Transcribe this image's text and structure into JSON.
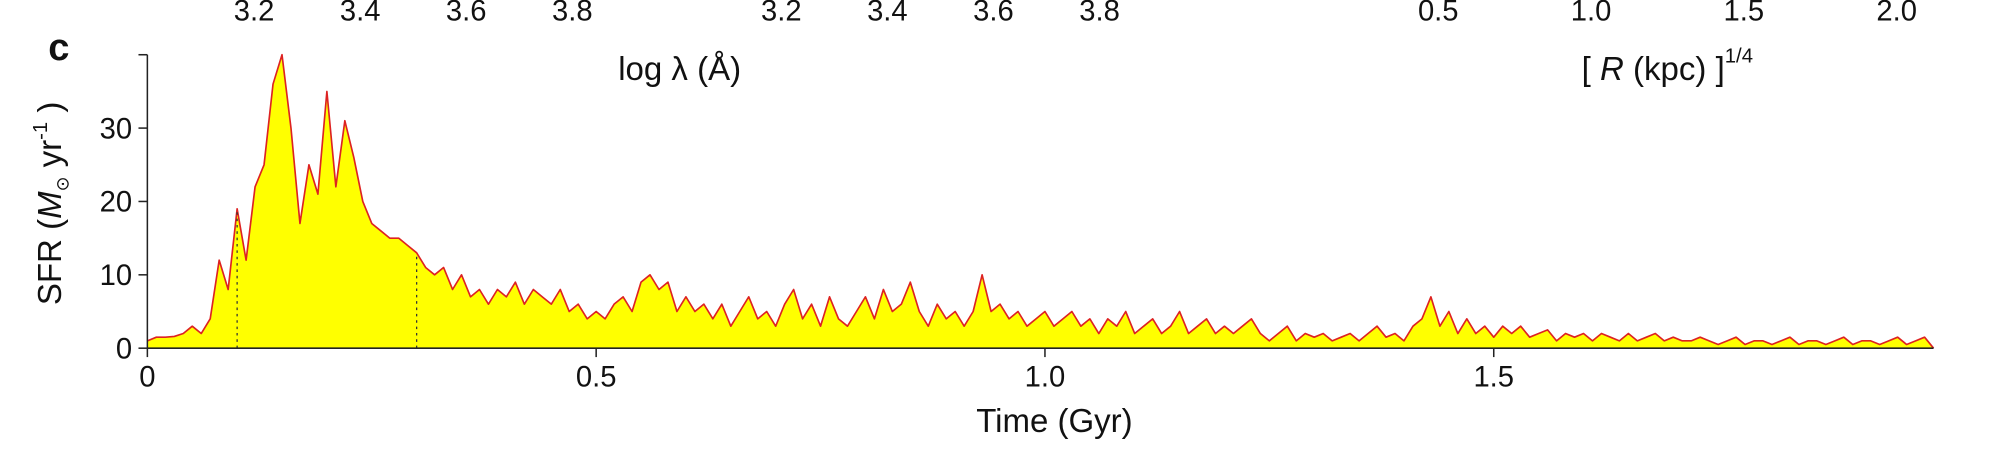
{
  "chart_data": [
    {
      "type": "axis",
      "xlim": [
        3.0,
        4.0
      ],
      "xticks": [
        3.2,
        3.4,
        3.6,
        3.8
      ]
    },
    {
      "type": "axis",
      "xlim": [
        3.0,
        4.0
      ],
      "xticks": [
        3.2,
        3.4,
        3.6,
        3.8
      ],
      "xlabel": "log λ (Å)"
    },
    {
      "type": "axis",
      "xlim": [
        0.3,
        2.1
      ],
      "xticks": [
        0.5,
        {
          "value": 1,
          "label": "1.0"
        },
        1.5,
        {
          "value": 2,
          "label": "2.0"
        }
      ],
      "xlabel": [
        "[ ",
        "R",
        " (kpc) ]",
        "1/4"
      ]
    },
    {
      "type": "area",
      "panel_label": "c",
      "xlabel": "Time (Gyr)",
      "ylabel": [
        "SFR (",
        "M",
        "⊙",
        " yr",
        "-1",
        " )"
      ],
      "xlim": [
        0,
        1.99
      ],
      "ylim": [
        0,
        40
      ],
      "xticks": [
        0,
        0.5,
        {
          "value": 1,
          "label": "1.0"
        },
        1.5
      ],
      "yticks": [
        0,
        10,
        20,
        30
      ],
      "vlines": [
        0.1,
        0.3
      ],
      "x": [
        0,
        0.01,
        0.02,
        0.03,
        0.04,
        0.05,
        0.06,
        0.07,
        0.08,
        0.09,
        0.1,
        0.11,
        0.12,
        0.13,
        0.14,
        0.15,
        0.16,
        0.17,
        0.18,
        0.19,
        0.2,
        0.21,
        0.22,
        0.23,
        0.24,
        0.25,
        0.26,
        0.27,
        0.28,
        0.29,
        0.3,
        0.31,
        0.32,
        0.33,
        0.34,
        0.35,
        0.36,
        0.37,
        0.38,
        0.39,
        0.4,
        0.41,
        0.42,
        0.43,
        0.44,
        0.45,
        0.46,
        0.47,
        0.48,
        0.49,
        0.5,
        0.51,
        0.52,
        0.53,
        0.54,
        0.55,
        0.56,
        0.57,
        0.58,
        0.59,
        0.6,
        0.61,
        0.62,
        0.63,
        0.64,
        0.65,
        0.66,
        0.67,
        0.68,
        0.69,
        0.7,
        0.71,
        0.72,
        0.73,
        0.74,
        0.75,
        0.76,
        0.77,
        0.78,
        0.79,
        0.8,
        0.81,
        0.82,
        0.83,
        0.84,
        0.85,
        0.86,
        0.87,
        0.88,
        0.89,
        0.9,
        0.91,
        0.92,
        0.93,
        0.94,
        0.95,
        0.96,
        0.97,
        0.98,
        0.99,
        1,
        1.01,
        1.02,
        1.03,
        1.04,
        1.05,
        1.06,
        1.07,
        1.08,
        1.09,
        1.1,
        1.11,
        1.12,
        1.13,
        1.14,
        1.15,
        1.16,
        1.17,
        1.18,
        1.19,
        1.2,
        1.21,
        1.22,
        1.23,
        1.24,
        1.25,
        1.26,
        1.27,
        1.28,
        1.29,
        1.3,
        1.31,
        1.32,
        1.33,
        1.34,
        1.35,
        1.36,
        1.37,
        1.38,
        1.39,
        1.4,
        1.41,
        1.42,
        1.43,
        1.44,
        1.45,
        1.46,
        1.47,
        1.48,
        1.49,
        1.5,
        1.51,
        1.52,
        1.53,
        1.54,
        1.55,
        1.56,
        1.57,
        1.58,
        1.59,
        1.6,
        1.61,
        1.62,
        1.63,
        1.64,
        1.65,
        1.66,
        1.67,
        1.68,
        1.69,
        1.7,
        1.71,
        1.72,
        1.73,
        1.74,
        1.75,
        1.76,
        1.77,
        1.78,
        1.79,
        1.8,
        1.81,
        1.82,
        1.83,
        1.84,
        1.85,
        1.86,
        1.87,
        1.88,
        1.89,
        1.9,
        1.91,
        1.92,
        1.93,
        1.94,
        1.95,
        1.96,
        1.97,
        1.98,
        1.99
      ],
      "series": [
        {
          "color": "#ffff00",
          "edge_color": "#dd2222",
          "values": [
            1,
            1.5,
            1.5,
            1.6,
            2,
            3,
            2,
            4,
            12,
            8,
            19,
            12,
            22,
            25,
            36,
            40,
            30,
            17,
            25,
            21,
            35,
            22,
            31,
            26,
            20,
            17,
            16,
            15,
            15,
            14,
            13,
            11,
            10,
            11,
            8,
            10,
            7,
            8,
            6,
            8,
            7,
            9,
            6,
            8,
            7,
            6,
            8,
            5,
            6,
            4,
            5,
            4,
            6,
            7,
            5,
            9,
            10,
            8,
            9,
            5,
            7,
            5,
            6,
            4,
            6,
            3,
            5,
            7,
            4,
            5,
            3,
            6,
            8,
            4,
            6,
            3,
            7,
            4,
            3,
            5,
            7,
            4,
            8,
            5,
            6,
            9,
            5,
            3,
            6,
            4,
            5,
            3,
            5,
            10,
            5,
            6,
            4,
            5,
            3,
            4,
            5,
            3,
            4,
            5,
            3,
            4,
            2,
            4,
            3,
            5,
            2,
            3,
            4,
            2,
            3,
            5,
            2,
            3,
            4,
            2,
            3,
            2,
            3,
            4,
            2,
            1,
            2,
            3,
            1,
            2,
            1.5,
            2,
            1,
            1.5,
            2,
            1,
            2,
            3,
            1.5,
            2,
            1,
            3,
            4,
            7,
            3,
            5,
            2,
            4,
            2,
            3,
            1.5,
            3,
            2,
            3,
            1.5,
            2,
            2.5,
            1,
            2,
            1.5,
            2,
            1,
            2,
            1.5,
            1,
            2,
            1,
            1.5,
            2,
            1,
            1.5,
            1,
            1,
            1.5,
            1,
            0.5,
            1,
            1.5,
            0.5,
            1,
            1,
            0.5,
            1,
            1.5,
            0.5,
            1,
            1,
            0.5,
            1,
            1.5,
            0.5,
            1,
            1,
            0.5,
            1,
            1.5,
            0.5,
            1,
            1.5,
            0
          ]
        }
      ]
    }
  ]
}
